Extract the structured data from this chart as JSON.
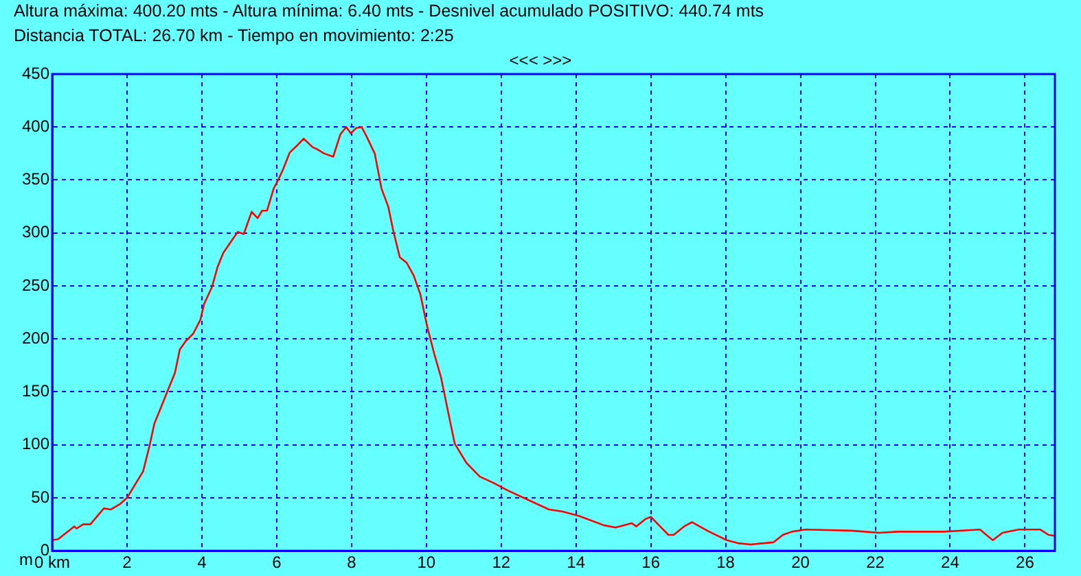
{
  "chart_data": {
    "type": "line",
    "title": "Altura máxima: 400.20 mts - Altura mínima: 6.40 mts - Desnivel acumulado POSITIVO: 440.74 mts",
    "subtitle": "Distancia TOTAL: 26.70 km - Tiempo en movimiento: 2:25",
    "ylabel": "m",
    "annotations": [
      "<<< >>>"
    ],
    "series": [
      {
        "color": "#ff0000",
        "x": [
          0,
          0.16,
          0.59,
          0.65,
          0.83,
          1.02,
          1.38,
          1.57,
          1.81,
          2.0,
          2.24,
          2.43,
          2.6,
          2.73,
          2.88,
          3.04,
          3.28,
          3.41,
          3.57,
          3.77,
          3.96,
          4.06,
          4.27,
          4.42,
          4.57,
          4.82,
          4.96,
          5.12,
          5.33,
          5.49,
          5.61,
          5.74,
          5.92,
          6.04,
          6.17,
          6.35,
          6.53,
          6.72,
          6.96,
          7.08,
          7.27,
          7.51,
          7.7,
          7.86,
          7.98,
          8.12,
          8.27,
          8.39,
          8.62,
          8.8,
          8.98,
          9.11,
          9.29,
          9.47,
          9.66,
          9.84,
          10.02,
          10.21,
          10.39,
          10.57,
          10.76,
          11.07,
          11.43,
          11.8,
          12.17,
          12.66,
          13.28,
          13.64,
          14.07,
          14.75,
          15.06,
          15.49,
          15.61,
          15.86,
          16.0,
          16.22,
          16.47,
          16.61,
          16.89,
          17.1,
          17.56,
          18.03,
          18.36,
          18.67,
          18.98,
          19.28,
          19.53,
          19.77,
          20.13,
          21.36,
          22.1,
          22.59,
          23.82,
          24.8,
          25.0,
          25.14,
          25.4,
          25.83,
          26.41,
          26.63,
          26.8
        ],
        "values": [
          10,
          11,
          23,
          21,
          25,
          25,
          40,
          39,
          44,
          50,
          64,
          75,
          99,
          120,
          133,
          147,
          168,
          190,
          198,
          205,
          218,
          233,
          249,
          268,
          281,
          294,
          301,
          299,
          320,
          314,
          321,
          321,
          342,
          350,
          360,
          376,
          382,
          389,
          381,
          379,
          375,
          372,
          393,
          400,
          394,
          399,
          400,
          392,
          375,
          342,
          325,
          303,
          277,
          272,
          260,
          242,
          212,
          186,
          164,
          133,
          101,
          83,
          70,
          64,
          57,
          49,
          39,
          37,
          33,
          24,
          22,
          26,
          23,
          30,
          32,
          24,
          15,
          15,
          23,
          27,
          18,
          10,
          7,
          6,
          7,
          8,
          15,
          18,
          20,
          19,
          17,
          18,
          18,
          20,
          14,
          10,
          17,
          20,
          20,
          15,
          14
        ]
      }
    ],
    "xlim": [
      0,
      26.8
    ],
    "xticks": [
      {
        "value": 0,
        "label": "0 km"
      },
      2,
      4,
      6,
      8,
      10,
      12,
      14,
      16,
      18,
      20,
      22,
      24,
      26
    ],
    "ylim": [
      0,
      450
    ],
    "yticks": [
      0,
      50,
      100,
      150,
      200,
      250,
      300,
      350,
      400,
      450
    ],
    "grid": true,
    "legend": false,
    "marker": "none",
    "line_style": "solid"
  }
}
